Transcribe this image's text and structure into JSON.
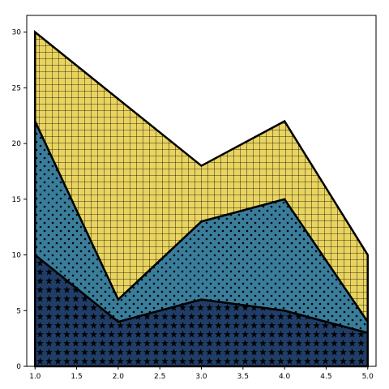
{
  "chart_data": {
    "type": "area",
    "stacked": true,
    "title": "",
    "xlabel": "",
    "ylabel": "",
    "x": [
      1.0,
      2.0,
      3.0,
      4.0,
      5.0
    ],
    "xlim": [
      0.9,
      5.1
    ],
    "ylim": [
      0,
      31.5
    ],
    "xticks": [
      "1.0",
      "1.5",
      "2.0",
      "2.5",
      "3.0",
      "3.5",
      "4.0",
      "4.5",
      "5.0"
    ],
    "yticks": [
      "0",
      "5",
      "10",
      "15",
      "20",
      "25",
      "30"
    ],
    "grid": false,
    "legend": "none",
    "series": [
      {
        "values": [
          10,
          4,
          6,
          5,
          3
        ],
        "color": "#1f3d66",
        "hatch": "stars"
      },
      {
        "values": [
          12,
          2,
          7,
          10,
          1
        ],
        "color": "#3a7d9b",
        "hatch": "dots"
      },
      {
        "values": [
          8,
          18,
          5,
          7,
          6
        ],
        "color": "#e9d460",
        "hatch": "grid"
      }
    ]
  }
}
